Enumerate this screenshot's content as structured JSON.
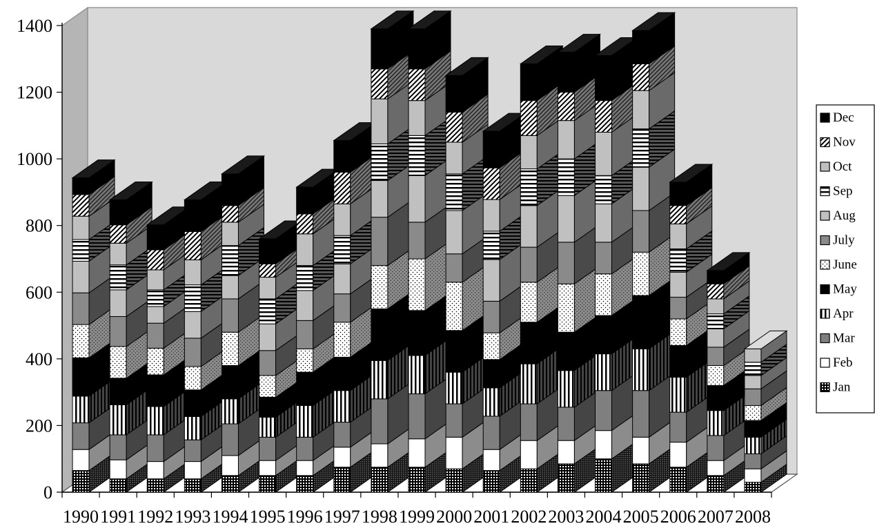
{
  "chart_data": {
    "type": "bar",
    "stacked": true,
    "three_d": true,
    "title": "",
    "xlabel": "",
    "ylabel": "",
    "ylim": [
      0,
      1400
    ],
    "yticks": [
      "0",
      "200",
      "400",
      "600",
      "800",
      "1000",
      "1200",
      "1400"
    ],
    "grid": false,
    "legend_position": "right",
    "categories": [
      "1990",
      "1991",
      "1992",
      "1993",
      "1994",
      "1995",
      "1996",
      "1997",
      "1998",
      "1999",
      "2000",
      "2001",
      "2002",
      "2003",
      "2004",
      "2005",
      "2006",
      "2007",
      "2008"
    ],
    "series": [
      {
        "name": "Jan",
        "values": [
          65,
          40,
          40,
          40,
          50,
          50,
          50,
          75,
          75,
          75,
          70,
          65,
          70,
          85,
          100,
          85,
          75,
          50,
          30
        ]
      },
      {
        "name": "Feb",
        "values": [
          63,
          57,
          52,
          52,
          60,
          45,
          45,
          60,
          70,
          85,
          95,
          63,
          85,
          70,
          85,
          80,
          75,
          45,
          40
        ]
      },
      {
        "name": "Mar",
        "values": [
          80,
          75,
          80,
          65,
          95,
          70,
          70,
          75,
          135,
          135,
          100,
          100,
          110,
          100,
          120,
          140,
          90,
          75,
          45
        ]
      },
      {
        "name": "Apr",
        "values": [
          80,
          90,
          85,
          70,
          75,
          60,
          95,
          95,
          115,
          115,
          95,
          85,
          120,
          110,
          110,
          125,
          105,
          75,
          50
        ]
      },
      {
        "name": "May",
        "values": [
          115,
          80,
          95,
          80,
          100,
          60,
          100,
          100,
          155,
          135,
          125,
          85,
          125,
          115,
          115,
          160,
          95,
          75,
          50
        ]
      },
      {
        "name": "June",
        "values": [
          100,
          95,
          80,
          70,
          100,
          65,
          70,
          105,
          130,
          155,
          145,
          80,
          120,
          145,
          125,
          130,
          80,
          60,
          45
        ]
      },
      {
        "name": "July",
        "values": [
          95,
          90,
          75,
          85,
          100,
          75,
          85,
          85,
          145,
          110,
          85,
          95,
          105,
          125,
          95,
          125,
          65,
          55,
          50
        ]
      },
      {
        "name": "Aug",
        "values": [
          95,
          80,
          50,
          80,
          70,
          80,
          90,
          90,
          110,
          140,
          130,
          125,
          125,
          140,
          115,
          130,
          75,
          55,
          40
        ]
      },
      {
        "name": "Sep",
        "values": [
          65,
          75,
          50,
          80,
          90,
          75,
          75,
          85,
          110,
          120,
          110,
          85,
          110,
          110,
          85,
          115,
          70,
          45,
          40
        ]
      },
      {
        "name": "Oct",
        "values": [
          70,
          65,
          60,
          75,
          70,
          65,
          95,
          95,
          135,
          105,
          95,
          95,
          100,
          115,
          130,
          115,
          75,
          45,
          40
        ]
      },
      {
        "name": "Nov",
        "values": [
          65,
          55,
          60,
          85,
          50,
          40,
          60,
          95,
          90,
          95,
          90,
          95,
          105,
          85,
          95,
          80,
          55,
          45,
          0
        ]
      },
      {
        "name": "Dec",
        "values": [
          50,
          75,
          75,
          95,
          95,
          75,
          80,
          95,
          120,
          120,
          110,
          110,
          110,
          120,
          135,
          100,
          70,
          40,
          0
        ]
      }
    ]
  }
}
